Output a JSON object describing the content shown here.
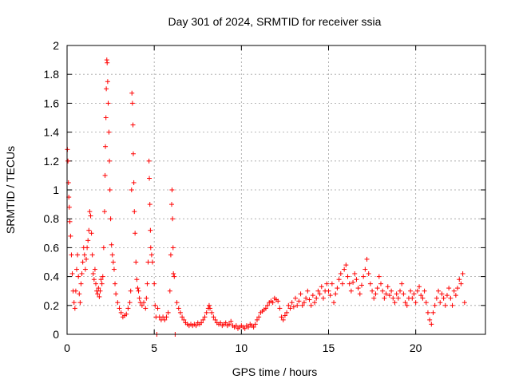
{
  "chart_data": {
    "type": "scatter",
    "title": "Day 301 of 2024, SRMTID for receiver ssia",
    "xlabel": "GPS time / hours",
    "ylabel": "SRMTID / TECUs",
    "xlim": [
      0,
      24
    ],
    "ylim": [
      0,
      2
    ],
    "xticks": [
      0,
      5,
      10,
      15,
      20
    ],
    "xtick_labels": [
      "0",
      "5",
      "10",
      "15",
      "20"
    ],
    "yticks": [
      0,
      0.2,
      0.4,
      0.6,
      0.8,
      1,
      1.2,
      1.4,
      1.6,
      1.8,
      2
    ],
    "ytick_labels": [
      "0",
      "0.2",
      "0.4",
      "0.6",
      "0.8",
      "1",
      "1.2",
      "1.4",
      "1.6",
      "1.8",
      "2"
    ],
    "grid": true,
    "marker": "+",
    "color": "#ff0000",
    "series": [
      {
        "name": "SRMTID",
        "points": [
          [
            0.02,
            1.28
          ],
          [
            0.05,
            1.2
          ],
          [
            0.08,
            1.05
          ],
          [
            0.1,
            0.95
          ],
          [
            0.13,
            0.88
          ],
          [
            0.16,
            0.78
          ],
          [
            0.2,
            0.68
          ],
          [
            0.25,
            0.55
          ],
          [
            0.3,
            0.42
          ],
          [
            0.35,
            0.3
          ],
          [
            0.4,
            0.22
          ],
          [
            0.45,
            0.18
          ],
          [
            0.5,
            0.3
          ],
          [
            0.55,
            0.45
          ],
          [
            0.6,
            0.55
          ],
          [
            0.65,
            0.4
          ],
          [
            0.7,
            0.28
          ],
          [
            0.75,
            0.22
          ],
          [
            0.8,
            0.35
          ],
          [
            0.85,
            0.42
          ],
          [
            0.9,
            0.5
          ],
          [
            0.95,
            0.6
          ],
          [
            1.0,
            0.55
          ],
          [
            1.05,
            0.45
          ],
          [
            1.1,
            0.52
          ],
          [
            1.15,
            0.6
          ],
          [
            1.2,
            0.65
          ],
          [
            1.25,
            0.72
          ],
          [
            1.3,
            0.85
          ],
          [
            1.35,
            0.82
          ],
          [
            1.4,
            0.7
          ],
          [
            1.45,
            0.55
          ],
          [
            1.5,
            0.42
          ],
          [
            1.55,
            0.38
          ],
          [
            1.6,
            0.45
          ],
          [
            1.65,
            0.35
          ],
          [
            1.7,
            0.3
          ],
          [
            1.75,
            0.28
          ],
          [
            1.8,
            0.32
          ],
          [
            1.85,
            0.26
          ],
          [
            1.9,
            0.3
          ],
          [
            1.95,
            0.38
          ],
          [
            2.0,
            0.35
          ],
          [
            2.05,
            0.4
          ],
          [
            2.1,
            0.6
          ],
          [
            2.15,
            0.85
          ],
          [
            2.18,
            1.1
          ],
          [
            2.2,
            1.3
          ],
          [
            2.23,
            1.5
          ],
          [
            2.25,
            1.7
          ],
          [
            2.28,
            1.9
          ],
          [
            2.3,
            1.88
          ],
          [
            2.33,
            1.75
          ],
          [
            2.36,
            1.6
          ],
          [
            2.4,
            1.4
          ],
          [
            2.43,
            1.2
          ],
          [
            2.46,
            1.0
          ],
          [
            2.5,
            0.8
          ],
          [
            2.55,
            0.62
          ],
          [
            2.6,
            0.55
          ],
          [
            2.65,
            0.5
          ],
          [
            2.7,
            0.45
          ],
          [
            2.75,
            0.35
          ],
          [
            2.8,
            0.28
          ],
          [
            2.9,
            0.22
          ],
          [
            3.0,
            0.18
          ],
          [
            3.1,
            0.15
          ],
          [
            3.2,
            0.12
          ],
          [
            3.3,
            0.13
          ],
          [
            3.4,
            0.14
          ],
          [
            3.5,
            0.18
          ],
          [
            3.6,
            0.22
          ],
          [
            3.65,
            0.3
          ],
          [
            3.7,
            1.0
          ],
          [
            3.72,
            1.67
          ],
          [
            3.75,
            1.6
          ],
          [
            3.78,
            1.45
          ],
          [
            3.8,
            1.25
          ],
          [
            3.83,
            1.05
          ],
          [
            3.86,
            0.85
          ],
          [
            3.9,
            0.7
          ],
          [
            3.95,
            0.5
          ],
          [
            4.0,
            0.38
          ],
          [
            4.05,
            0.32
          ],
          [
            4.1,
            0.3
          ],
          [
            4.15,
            0.25
          ],
          [
            4.2,
            0.22
          ],
          [
            4.3,
            0.2
          ],
          [
            4.4,
            0.22
          ],
          [
            4.5,
            0.18
          ],
          [
            4.55,
            0.25
          ],
          [
            4.6,
            0.35
          ],
          [
            4.65,
            0.5
          ],
          [
            4.7,
            1.2
          ],
          [
            4.72,
            1.08
          ],
          [
            4.75,
            0.9
          ],
          [
            4.78,
            0.72
          ],
          [
            4.8,
            0.6
          ],
          [
            4.85,
            0.55
          ],
          [
            4.9,
            0.5
          ],
          [
            5.0,
            0.35
          ],
          [
            5.05,
            0.2
          ],
          [
            5.1,
            0.12
          ],
          [
            5.15,
            0.0
          ],
          [
            5.2,
            0.18
          ],
          [
            5.3,
            0.12
          ],
          [
            5.4,
            0.1
          ],
          [
            5.5,
            0.12
          ],
          [
            5.6,
            0.1
          ],
          [
            5.7,
            0.12
          ],
          [
            5.8,
            0.15
          ],
          [
            5.9,
            0.3
          ],
          [
            5.95,
            0.55
          ],
          [
            6.0,
            0.9
          ],
          [
            6.02,
            1.0
          ],
          [
            6.05,
            0.8
          ],
          [
            6.08,
            0.6
          ],
          [
            6.1,
            0.42
          ],
          [
            6.15,
            0.4
          ],
          [
            6.2,
            0.0
          ],
          [
            6.3,
            0.22
          ],
          [
            6.4,
            0.18
          ],
          [
            6.5,
            0.15
          ],
          [
            6.6,
            0.12
          ],
          [
            6.7,
            0.1
          ],
          [
            6.8,
            0.08
          ],
          [
            6.9,
            0.07
          ],
          [
            7.0,
            0.06
          ],
          [
            7.1,
            0.07
          ],
          [
            7.2,
            0.06
          ],
          [
            7.3,
            0.07
          ],
          [
            7.4,
            0.06
          ],
          [
            7.5,
            0.08
          ],
          [
            7.6,
            0.07
          ],
          [
            7.7,
            0.08
          ],
          [
            7.8,
            0.1
          ],
          [
            7.9,
            0.12
          ],
          [
            8.0,
            0.15
          ],
          [
            8.1,
            0.18
          ],
          [
            8.15,
            0.2
          ],
          [
            8.2,
            0.18
          ],
          [
            8.3,
            0.15
          ],
          [
            8.4,
            0.12
          ],
          [
            8.5,
            0.1
          ],
          [
            8.6,
            0.08
          ],
          [
            8.7,
            0.07
          ],
          [
            8.8,
            0.08
          ],
          [
            8.9,
            0.06
          ],
          [
            9.0,
            0.07
          ],
          [
            9.1,
            0.08
          ],
          [
            9.2,
            0.06
          ],
          [
            9.3,
            0.07
          ],
          [
            9.4,
            0.09
          ],
          [
            9.5,
            0.06
          ],
          [
            9.6,
            0.05
          ],
          [
            9.7,
            0.06
          ],
          [
            9.8,
            0.04
          ],
          [
            9.9,
            0.05
          ],
          [
            10.0,
            0.06
          ],
          [
            10.1,
            0.05
          ],
          [
            10.2,
            0.04
          ],
          [
            10.3,
            0.06
          ],
          [
            10.4,
            0.05
          ],
          [
            10.5,
            0.07
          ],
          [
            10.6,
            0.06
          ],
          [
            10.7,
            0.05
          ],
          [
            10.8,
            0.07
          ],
          [
            10.9,
            0.1
          ],
          [
            11.0,
            0.12
          ],
          [
            11.1,
            0.15
          ],
          [
            11.2,
            0.16
          ],
          [
            11.3,
            0.17
          ],
          [
            11.4,
            0.18
          ],
          [
            11.5,
            0.2
          ],
          [
            11.6,
            0.22
          ],
          [
            11.7,
            0.23
          ],
          [
            11.8,
            0.22
          ],
          [
            11.9,
            0.25
          ],
          [
            12.0,
            0.24
          ],
          [
            12.1,
            0.23
          ],
          [
            12.2,
            0.18
          ],
          [
            12.3,
            0.12
          ],
          [
            12.4,
            0.1
          ],
          [
            12.5,
            0.13
          ],
          [
            12.6,
            0.15
          ],
          [
            12.7,
            0.2
          ],
          [
            12.8,
            0.18
          ],
          [
            12.9,
            0.22
          ],
          [
            13.0,
            0.19
          ],
          [
            13.1,
            0.25
          ],
          [
            13.2,
            0.2
          ],
          [
            13.3,
            0.23
          ],
          [
            13.4,
            0.28
          ],
          [
            13.5,
            0.2
          ],
          [
            13.6,
            0.22
          ],
          [
            13.7,
            0.25
          ],
          [
            13.8,
            0.3
          ],
          [
            13.9,
            0.24
          ],
          [
            14.0,
            0.2
          ],
          [
            14.1,
            0.27
          ],
          [
            14.2,
            0.22
          ],
          [
            14.3,
            0.25
          ],
          [
            14.4,
            0.3
          ],
          [
            14.5,
            0.28
          ],
          [
            14.6,
            0.33
          ],
          [
            14.7,
            0.25
          ],
          [
            14.8,
            0.3
          ],
          [
            14.9,
            0.35
          ],
          [
            15.0,
            0.3
          ],
          [
            15.1,
            0.27
          ],
          [
            15.2,
            0.35
          ],
          [
            15.3,
            0.22
          ],
          [
            15.4,
            0.28
          ],
          [
            15.5,
            0.32
          ],
          [
            15.6,
            0.38
          ],
          [
            15.7,
            0.42
          ],
          [
            15.8,
            0.35
          ],
          [
            15.9,
            0.45
          ],
          [
            16.0,
            0.48
          ],
          [
            16.1,
            0.4
          ],
          [
            16.2,
            0.35
          ],
          [
            16.3,
            0.3
          ],
          [
            16.4,
            0.36
          ],
          [
            16.5,
            0.42
          ],
          [
            16.6,
            0.38
          ],
          [
            16.7,
            0.32
          ],
          [
            16.8,
            0.28
          ],
          [
            16.9,
            0.34
          ],
          [
            17.0,
            0.4
          ],
          [
            17.1,
            0.45
          ],
          [
            17.2,
            0.52
          ],
          [
            17.3,
            0.42
          ],
          [
            17.4,
            0.35
          ],
          [
            17.5,
            0.3
          ],
          [
            17.6,
            0.25
          ],
          [
            17.7,
            0.28
          ],
          [
            17.8,
            0.32
          ],
          [
            17.9,
            0.4
          ],
          [
            18.0,
            0.35
          ],
          [
            18.1,
            0.3
          ],
          [
            18.2,
            0.25
          ],
          [
            18.3,
            0.28
          ],
          [
            18.4,
            0.33
          ],
          [
            18.5,
            0.27
          ],
          [
            18.6,
            0.3
          ],
          [
            18.7,
            0.25
          ],
          [
            18.8,
            0.22
          ],
          [
            18.9,
            0.28
          ],
          [
            19.0,
            0.25
          ],
          [
            19.1,
            0.3
          ],
          [
            19.2,
            0.35
          ],
          [
            19.3,
            0.28
          ],
          [
            19.4,
            0.22
          ],
          [
            19.5,
            0.2
          ],
          [
            19.6,
            0.25
          ],
          [
            19.7,
            0.3
          ],
          [
            19.8,
            0.25
          ],
          [
            19.9,
            0.28
          ],
          [
            20.0,
            0.22
          ],
          [
            20.1,
            0.3
          ],
          [
            20.2,
            0.33
          ],
          [
            20.3,
            0.27
          ],
          [
            20.4,
            0.25
          ],
          [
            20.5,
            0.3
          ],
          [
            20.6,
            0.22
          ],
          [
            20.7,
            0.15
          ],
          [
            20.8,
            0.1
          ],
          [
            20.9,
            0.07
          ],
          [
            21.0,
            0.15
          ],
          [
            21.1,
            0.2
          ],
          [
            21.2,
            0.25
          ],
          [
            21.3,
            0.3
          ],
          [
            21.4,
            0.22
          ],
          [
            21.5,
            0.28
          ],
          [
            21.6,
            0.25
          ],
          [
            21.7,
            0.2
          ],
          [
            21.8,
            0.27
          ],
          [
            21.9,
            0.32
          ],
          [
            22.0,
            0.25
          ],
          [
            22.1,
            0.2
          ],
          [
            22.2,
            0.3
          ],
          [
            22.3,
            0.27
          ],
          [
            22.4,
            0.32
          ],
          [
            22.5,
            0.38
          ],
          [
            22.6,
            0.35
          ],
          [
            22.7,
            0.42
          ],
          [
            22.8,
            0.22
          ]
        ]
      }
    ]
  }
}
